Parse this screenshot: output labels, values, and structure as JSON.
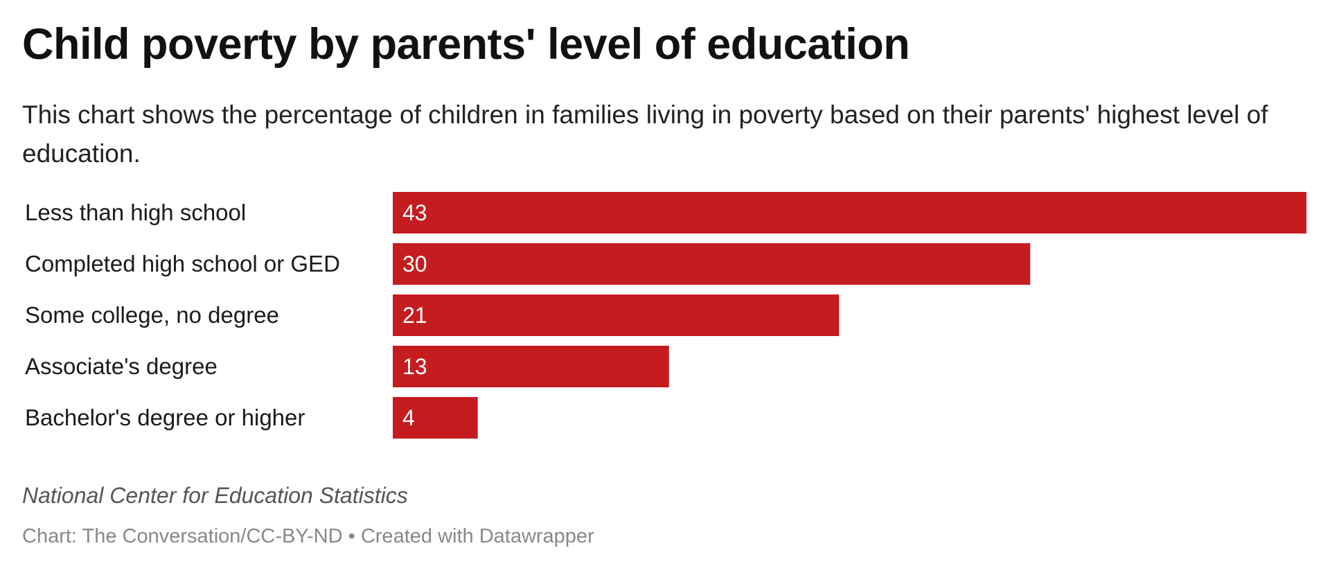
{
  "chart_data": {
    "type": "bar",
    "orientation": "horizontal",
    "title": "Child poverty by parents' level of education",
    "subtitle": "This chart shows the percentage of children in families living in poverty based on their parents' highest level of education.",
    "categories": [
      "Less than high school",
      "Completed high school or GED",
      "Some college, no degree",
      "Associate's degree",
      "Bachelor's degree or higher"
    ],
    "values": [
      43,
      30,
      21,
      13,
      4
    ],
    "xlim": [
      0,
      43
    ],
    "grid": false,
    "data_labels": "inside-left",
    "bar_color": "#c41c1f",
    "label_color": "#ffffff"
  },
  "footer": {
    "source": "National Center for Education Statistics",
    "credit": "Chart: The Conversation/CC-BY-ND • Created with Datawrapper"
  }
}
